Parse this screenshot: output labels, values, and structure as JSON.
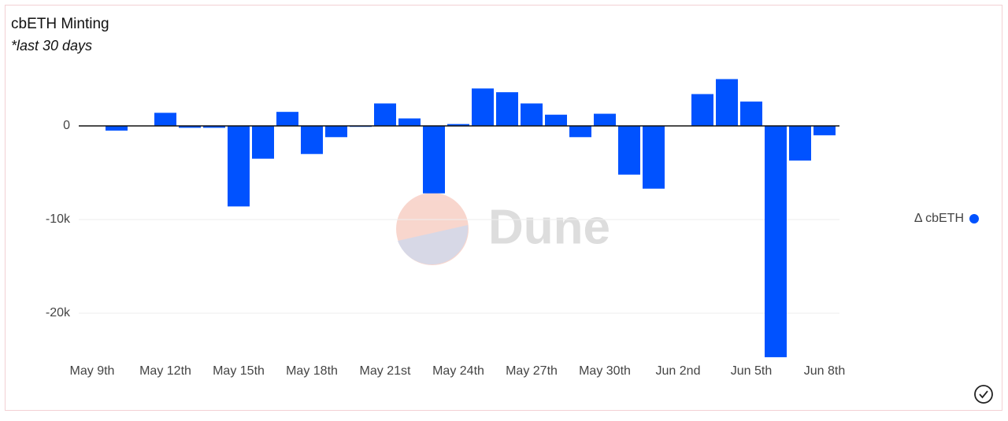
{
  "chart_data": {
    "type": "bar",
    "title": "cbETH Minting",
    "subtitle": "*last 30 days",
    "categories": [
      "May 9th",
      null,
      null,
      "May 12th",
      null,
      null,
      "May 15th",
      null,
      null,
      "May 18th",
      null,
      null,
      "May 21st",
      null,
      null,
      "May 24th",
      null,
      null,
      "May 27th",
      null,
      null,
      "May 30th",
      null,
      null,
      "Jun 2nd",
      null,
      null,
      "Jun 5th",
      null,
      null,
      "Jun 8th"
    ],
    "series": [
      {
        "name": "Δ cbETH",
        "color": "#0052ff",
        "values": [
          0,
          -500,
          0,
          1400,
          -200,
          -200,
          -8600,
          -3500,
          1500,
          -3000,
          -1200,
          -100,
          2400,
          800,
          -7200,
          200,
          4000,
          3600,
          2400,
          1200,
          -1200,
          1300,
          -5200,
          -6700,
          0,
          3400,
          5000,
          2600,
          -24700,
          -3700,
          -1000
        ]
      }
    ],
    "ylim": [
      -25000,
      5800
    ],
    "yticks": [
      {
        "value": -20000,
        "label": "-20k"
      },
      {
        "value": -10000,
        "label": "-10k"
      },
      0
    ],
    "grid": true,
    "legend": "right",
    "watermark": "Dune"
  }
}
